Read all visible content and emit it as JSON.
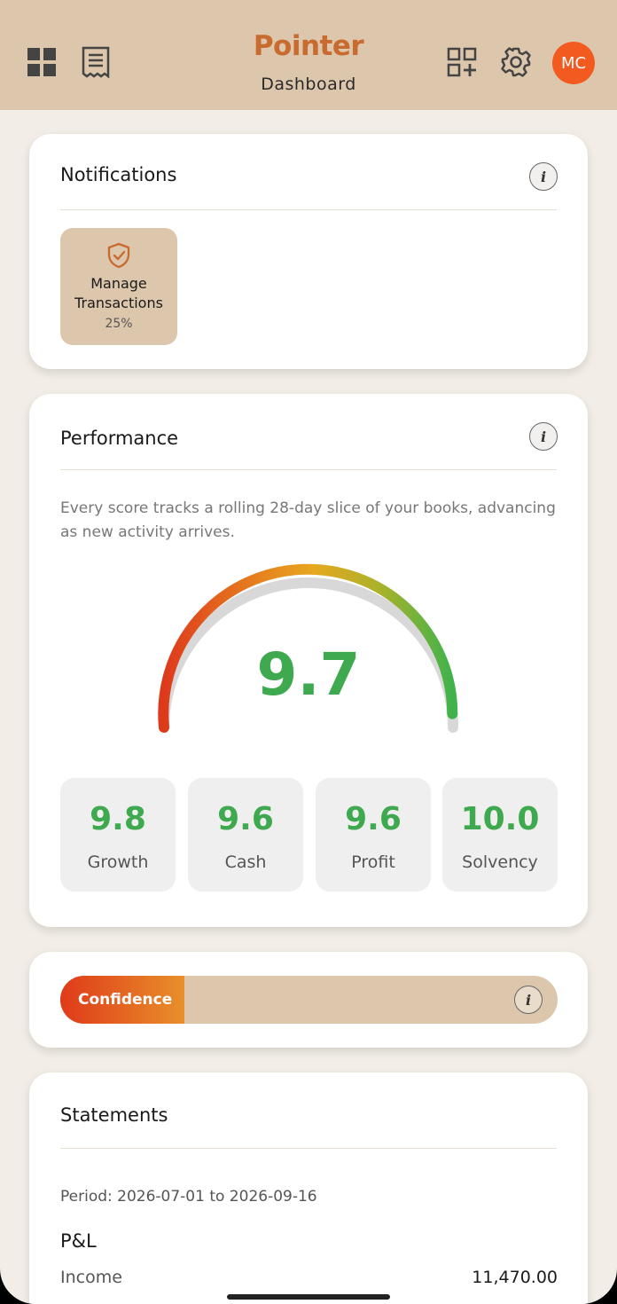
{
  "header": {
    "brand": "Pointer",
    "subtitle": "Dashboard",
    "avatar_initials": "MC",
    "icons": [
      "grid-icon",
      "receipt-icon",
      "add-widget-icon",
      "gear-icon"
    ]
  },
  "notifications": {
    "title": "Notifications",
    "tile": {
      "line1": "Manage",
      "line2": "Transactions",
      "progress": "25%"
    }
  },
  "performance": {
    "title": "Performance",
    "description": "Every score tracks a rolling 28-day slice of your books, advancing as new activity arrives.",
    "score": "9.7",
    "score_max": 10,
    "metrics": [
      {
        "value": "9.8",
        "label": "Growth"
      },
      {
        "value": "9.6",
        "label": "Cash"
      },
      {
        "value": "9.6",
        "label": "Profit"
      },
      {
        "value": "10.0",
        "label": "Solvency"
      }
    ]
  },
  "confidence": {
    "label": "Confidence",
    "level": 0.25
  },
  "statements": {
    "title": "Statements",
    "period": "Period: 2026-07-01 to 2026-09-16",
    "section": "P&L",
    "rows": [
      {
        "label": "Income",
        "value": "11,470.00"
      }
    ]
  },
  "colors": {
    "header_bg": "#dcc6ac",
    "brand": "#c96a2f",
    "avatar": "#f25a1f",
    "score_green": "#3ea94f",
    "page_bg": "#f2ede6"
  }
}
